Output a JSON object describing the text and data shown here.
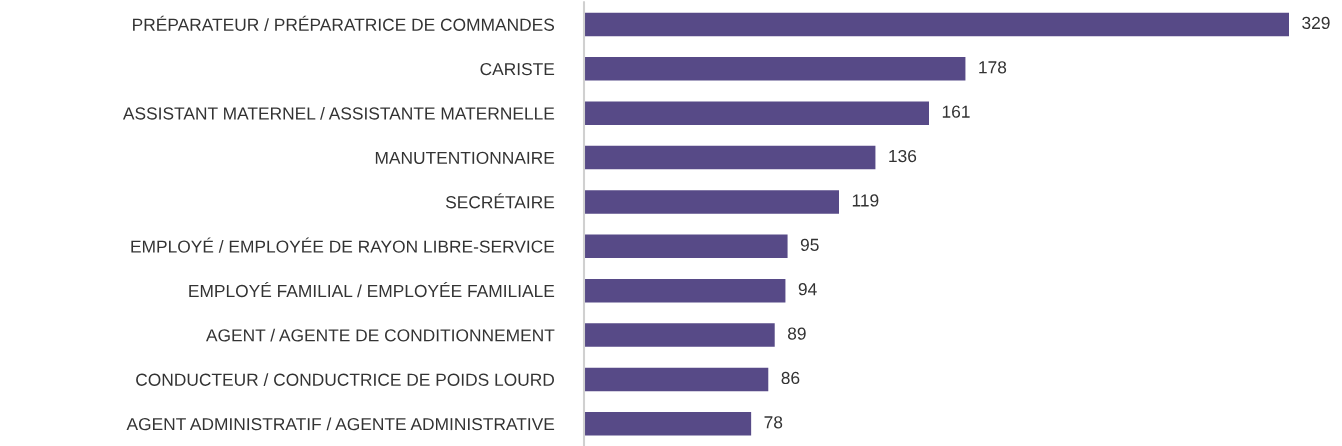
{
  "chart_data": {
    "type": "bar",
    "orientation": "horizontal",
    "categories": [
      "PRÉPARATEUR / PRÉPARATRICE DE COMMANDES",
      "CARISTE",
      "ASSISTANT MATERNEL / ASSISTANTE MATERNELLE",
      "MANUTENTIONNAIRE",
      "SECRÉTAIRE",
      "EMPLOYÉ / EMPLOYÉE DE RAYON LIBRE-SERVICE",
      "EMPLOYÉ FAMILIAL / EMPLOYÉE FAMILIALE",
      "AGENT / AGENTE DE CONDITIONNEMENT",
      "CONDUCTEUR / CONDUCTRICE DE POIDS LOURD",
      "AGENT ADMINISTRATIF / AGENTE ADMINISTRATIVE"
    ],
    "values": [
      329,
      178,
      161,
      136,
      119,
      95,
      94,
      89,
      86,
      78
    ],
    "color": "#574a87",
    "data_labels": true,
    "grid": false,
    "legend": false
  }
}
